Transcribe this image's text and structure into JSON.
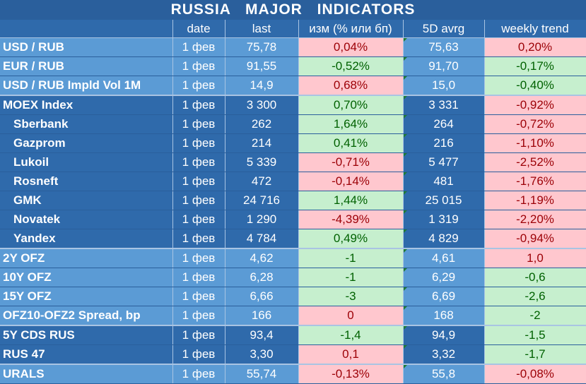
{
  "title": "RUSSIA   MAJOR   INDICATORS",
  "headers": [
    "",
    "date",
    "last",
    "изм (% или бп)",
    "5D avrg",
    "weekly trend"
  ],
  "rows": [
    {
      "name": "USD / RUB",
      "date": "1 фев",
      "last": "75,78",
      "chg": "0,04%",
      "chg_sign": "neg",
      "avg": "75,63",
      "trend": "0,20%",
      "trend_sign": "neg",
      "shade": "light",
      "indent": false,
      "group_start": false
    },
    {
      "name": "EUR / RUB",
      "date": "1 фев",
      "last": "91,55",
      "chg": "-0,52%",
      "chg_sign": "pos",
      "avg": "91,70",
      "trend": "-0,17%",
      "trend_sign": "pos",
      "shade": "light",
      "indent": false,
      "group_start": false
    },
    {
      "name": "USD / RUB Impld Vol 1M",
      "date": "1 фев",
      "last": "14,9",
      "chg": "0,68%",
      "chg_sign": "neg",
      "avg": "15,0",
      "trend": "-0,40%",
      "trend_sign": "pos",
      "shade": "light",
      "indent": false,
      "group_start": false
    },
    {
      "name": "MOEX Index",
      "date": "1 фев",
      "last": "3 300",
      "chg": "0,70%",
      "chg_sign": "pos",
      "avg": "3 331",
      "trend": "-0,92%",
      "trend_sign": "neg",
      "shade": "dark",
      "indent": false,
      "group_start": true
    },
    {
      "name": "Sberbank",
      "date": "1 фев",
      "last": "262",
      "chg": "1,64%",
      "chg_sign": "pos",
      "avg": "264",
      "trend": "-0,72%",
      "trend_sign": "neg",
      "shade": "dark",
      "indent": true,
      "group_start": false
    },
    {
      "name": "Gazprom",
      "date": "1 фев",
      "last": "214",
      "chg": "0,41%",
      "chg_sign": "pos",
      "avg": "216",
      "trend": "-1,10%",
      "trend_sign": "neg",
      "shade": "dark",
      "indent": true,
      "group_start": false
    },
    {
      "name": "Lukoil",
      "date": "1 фев",
      "last": "5 339",
      "chg": "-0,71%",
      "chg_sign": "neg",
      "avg": "5 477",
      "trend": "-2,52%",
      "trend_sign": "neg",
      "shade": "dark",
      "indent": true,
      "group_start": false
    },
    {
      "name": "Rosneft",
      "date": "1 фев",
      "last": "472",
      "chg": "-0,14%",
      "chg_sign": "neg",
      "avg": "481",
      "trend": "-1,76%",
      "trend_sign": "neg",
      "shade": "dark",
      "indent": true,
      "group_start": false
    },
    {
      "name": "GMK",
      "date": "1 фев",
      "last": "24 716",
      "chg": "1,44%",
      "chg_sign": "pos",
      "avg": "25 015",
      "trend": "-1,19%",
      "trend_sign": "neg",
      "shade": "dark",
      "indent": true,
      "group_start": false
    },
    {
      "name": "Novatek",
      "date": "1 фев",
      "last": "1 290",
      "chg": "-4,39%",
      "chg_sign": "neg",
      "avg": "1 319",
      "trend": "-2,20%",
      "trend_sign": "neg",
      "shade": "dark",
      "indent": true,
      "group_start": false
    },
    {
      "name": "Yandex",
      "date": "1 фев",
      "last": "4 784",
      "chg": "0,49%",
      "chg_sign": "pos",
      "avg": "4 829",
      "trend": "-0,94%",
      "trend_sign": "neg",
      "shade": "dark",
      "indent": true,
      "group_start": false
    },
    {
      "name": "2Y OFZ",
      "date": "1 фев",
      "last": "4,62",
      "chg": "-1",
      "chg_sign": "pos",
      "avg": "4,61",
      "trend": "1,0",
      "trend_sign": "neg",
      "shade": "light",
      "indent": false,
      "group_start": true
    },
    {
      "name": "10Y OFZ",
      "date": "1 фев",
      "last": "6,28",
      "chg": "-1",
      "chg_sign": "pos",
      "avg": "6,29",
      "trend": "-0,6",
      "trend_sign": "pos",
      "shade": "light",
      "indent": false,
      "group_start": false
    },
    {
      "name": "15Y OFZ",
      "date": "1 фев",
      "last": "6,66",
      "chg": "-3",
      "chg_sign": "pos",
      "avg": "6,69",
      "trend": "-2,6",
      "trend_sign": "pos",
      "shade": "light",
      "indent": false,
      "group_start": false
    },
    {
      "name": "OFZ10-OFZ2 Spread, bp",
      "date": "1 фев",
      "last": "166",
      "chg": "0",
      "chg_sign": "neg",
      "avg": "168",
      "trend": "-2",
      "trend_sign": "pos",
      "shade": "light",
      "indent": false,
      "group_start": false
    },
    {
      "name": "5Y CDS RUS",
      "date": "1 фев",
      "last": "93,4",
      "chg": "-1,4",
      "chg_sign": "pos",
      "avg": "94,9",
      "trend": "-1,5",
      "trend_sign": "pos",
      "shade": "dark",
      "indent": false,
      "group_start": true
    },
    {
      "name": "RUS 47",
      "date": "1 фев",
      "last": "3,30",
      "chg": "0,1",
      "chg_sign": "neg",
      "avg": "3,32",
      "trend": "-1,7",
      "trend_sign": "pos",
      "shade": "dark",
      "indent": false,
      "group_start": false
    },
    {
      "name": "URALS",
      "date": "1 фев",
      "last": "55,74",
      "chg": "-0,13%",
      "chg_sign": "neg",
      "avg": "55,8",
      "trend": "-0,08%",
      "trend_sign": "neg",
      "shade": "light",
      "indent": false,
      "group_start": true
    }
  ],
  "colors": {
    "dark_blue": "#2f6aab",
    "light_blue": "#5b9bd5",
    "neg_fill": "#ffc7ce",
    "neg_text": "#9c0006",
    "pos_fill": "#c6efce",
    "pos_text": "#006100"
  }
}
